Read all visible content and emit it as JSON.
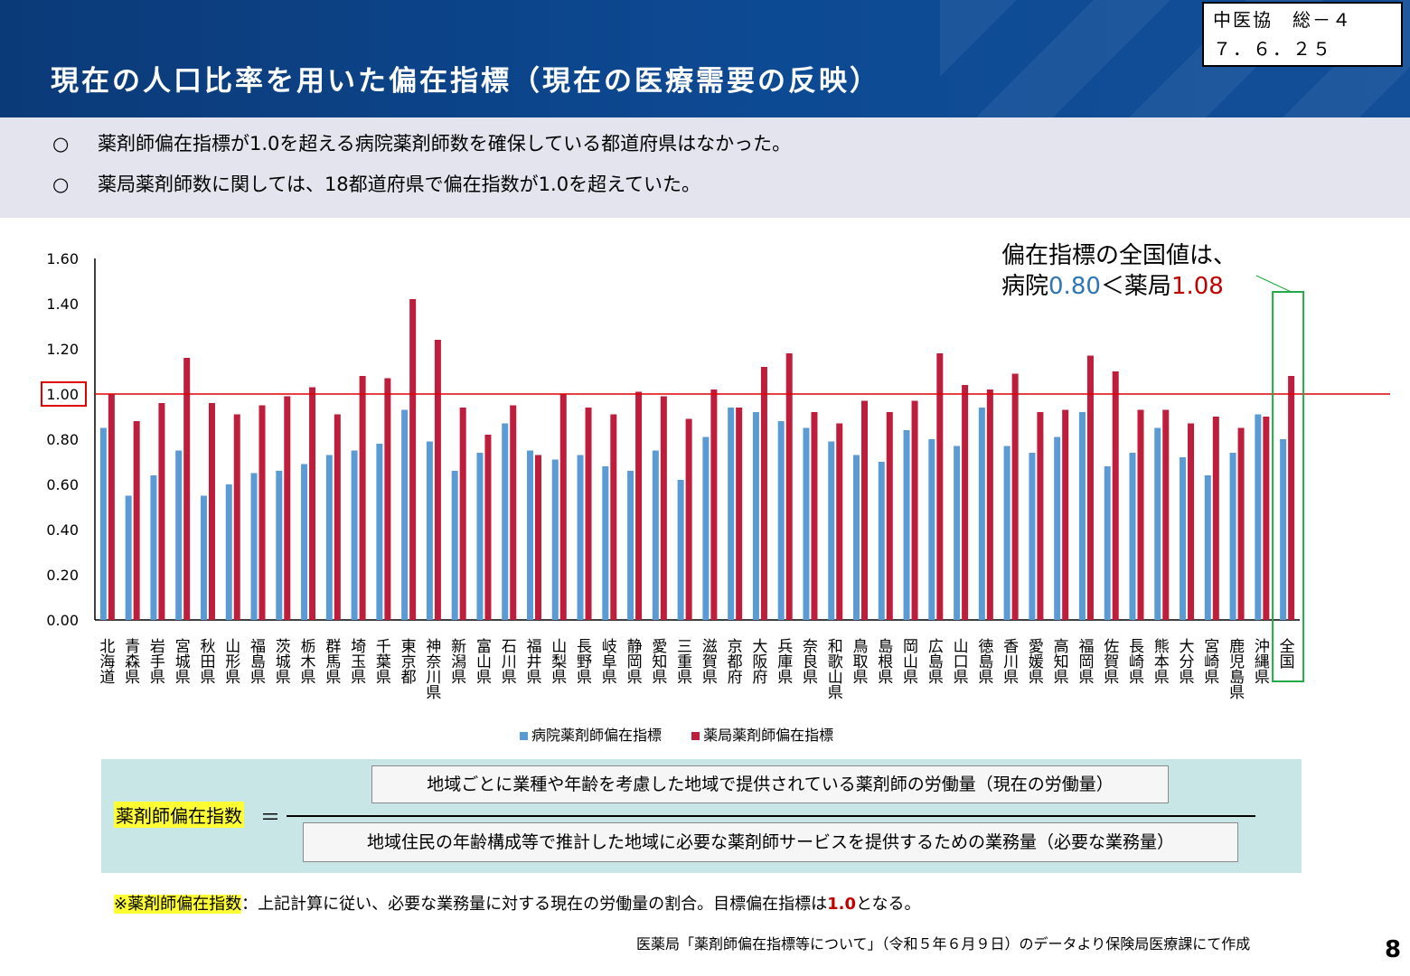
{
  "header": {
    "title": "現在の人口比率を用いた偏在指標（現在の医療需要の反映）",
    "meeting_line1": "中医協　総－４",
    "meeting_line2": "７．６．２５"
  },
  "summary": {
    "bullet": "○",
    "items": [
      "薬剤師偏在指標が1.0を超える病院薬剤師数を確保している都道府県はなかった。",
      "薬局薬剤師数に関しては、18都道府県で偏在指数が1.0を超えていた。"
    ]
  },
  "callout": {
    "line1": "偏在指標の全国値は、",
    "hospital_prefix": "病院",
    "hospital_value": "0.80",
    "separator": "＜",
    "pharmacy_prefix": "薬局",
    "pharmacy_value": "1.08"
  },
  "colors": {
    "hospital": "#5b9bd5",
    "pharmacy": "#be1e3c",
    "reference_line": "#e00000",
    "highlight_box": "#22aa44",
    "header_bg": "#0d4a94"
  },
  "chart_data": {
    "type": "bar",
    "ylim": [
      0,
      1.6
    ],
    "yticks": [
      "0.00",
      "0.20",
      "0.40",
      "0.60",
      "0.80",
      "1.00",
      "1.20",
      "1.40",
      "1.60"
    ],
    "reference_line": 1.0,
    "legend_position": "bottom",
    "categories": [
      "北海道",
      "青森県",
      "岩手県",
      "宮城県",
      "秋田県",
      "山形県",
      "福島県",
      "茨城県",
      "栃木県",
      "群馬県",
      "埼玉県",
      "千葉県",
      "東京都",
      "神奈川県",
      "新潟県",
      "富山県",
      "石川県",
      "福井県",
      "山梨県",
      "長野県",
      "岐阜県",
      "静岡県",
      "愛知県",
      "三重県",
      "滋賀県",
      "京都府",
      "大阪府",
      "兵庫県",
      "奈良県",
      "和歌山県",
      "鳥取県",
      "島根県",
      "岡山県",
      "広島県",
      "山口県",
      "徳島県",
      "香川県",
      "愛媛県",
      "高知県",
      "福岡県",
      "佐賀県",
      "長崎県",
      "熊本県",
      "大分県",
      "宮崎県",
      "鹿児島県",
      "沖縄県",
      "全国"
    ],
    "series": [
      {
        "name": "病院薬剤師偏在指標",
        "values": [
          0.85,
          0.55,
          0.64,
          0.75,
          0.55,
          0.6,
          0.65,
          0.66,
          0.69,
          0.73,
          0.75,
          0.78,
          0.93,
          0.79,
          0.66,
          0.74,
          0.87,
          0.75,
          0.71,
          0.73,
          0.68,
          0.66,
          0.75,
          0.62,
          0.81,
          0.94,
          0.92,
          0.88,
          0.85,
          0.79,
          0.73,
          0.7,
          0.84,
          0.8,
          0.77,
          0.94,
          0.77,
          0.74,
          0.81,
          0.92,
          0.68,
          0.74,
          0.85,
          0.72,
          0.64,
          0.74,
          0.91,
          0.8
        ]
      },
      {
        "name": "薬局薬剤師偏在指標",
        "values": [
          1.0,
          0.88,
          0.96,
          1.16,
          0.96,
          0.91,
          0.95,
          0.99,
          1.03,
          0.91,
          1.08,
          1.07,
          1.42,
          1.24,
          0.94,
          0.82,
          0.95,
          0.73,
          1.0,
          0.94,
          0.91,
          1.01,
          0.99,
          0.89,
          1.02,
          0.94,
          1.12,
          1.18,
          0.92,
          0.87,
          0.97,
          0.92,
          0.97,
          1.18,
          1.04,
          1.02,
          1.09,
          0.92,
          0.93,
          1.17,
          1.1,
          0.93,
          0.93,
          0.87,
          0.9,
          0.85,
          0.9,
          1.08
        ]
      }
    ]
  },
  "formula": {
    "label": "薬剤師偏在指数",
    "equals": "＝",
    "numerator": "地域ごとに業種や年齢を考慮した地域で提供されている薬剤師の労働量（現在の労働量）",
    "denominator": "地域住民の年齢構成等で推計した地域に必要な薬剤師サービスを提供するための業務量（必要な業務量）"
  },
  "note": {
    "label": "※薬剤師偏在指数",
    "text_before": "：上記計算に従い、必要な業務量に対する現在の労働量の割合。目標偏在指標は",
    "target": "1.0",
    "text_after": "となる。"
  },
  "source": "医薬局「薬剤師偏在指標等について」（令和５年６月９日）のデータより保険局医療課にて作成",
  "page_number": "8"
}
